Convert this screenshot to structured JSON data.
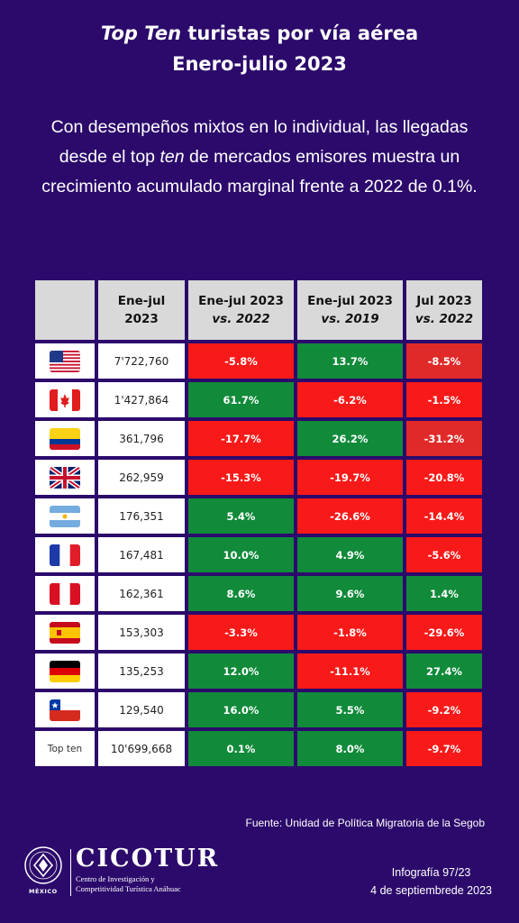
{
  "title": {
    "line1_italic": "Top Ten",
    "line1_rest": " turistas por vía aérea",
    "line2": "Enero-julio 2023"
  },
  "subtitle": {
    "part1": "Con desempeños mixtos en lo individual, las llegadas desde el top ",
    "italic": "ten",
    "part2": " de mercados emisores muestra un crecimiento acumulado marginal frente a 2022 de 0.1%."
  },
  "table": {
    "headers": [
      {
        "line1": "Ene-jul",
        "line2": "2023"
      },
      {
        "line1": "Ene-jul 2023",
        "line2": "vs. 2022"
      },
      {
        "line1": "Ene-jul 2023",
        "line2": "vs. 2019"
      },
      {
        "line1": "Jul 2023",
        "line2": "vs. 2022"
      }
    ],
    "rows": [
      {
        "flag": "usa-flag",
        "value": "7'722,760",
        "c1": "-5.8%",
        "c2": "13.7%",
        "c3": "-8.5%"
      },
      {
        "flag": "canada-flag",
        "value": "1'427,864",
        "c1": "61.7%",
        "c2": "-6.2%",
        "c3": "-1.5%"
      },
      {
        "flag": "colombia-flag",
        "value": "361,796",
        "c1": "-17.7%",
        "c2": "26.2%",
        "c3": "-31.2%"
      },
      {
        "flag": "uk-flag",
        "value": "262,959",
        "c1": "-15.3%",
        "c2": "-19.7%",
        "c3": "-20.8%"
      },
      {
        "flag": "argentina-flag",
        "value": "176,351",
        "c1": "5.4%",
        "c2": "-26.6%",
        "c3": "-14.4%"
      },
      {
        "flag": "france-flag",
        "value": "167,481",
        "c1": "10.0%",
        "c2": "4.9%",
        "c3": "-5.6%"
      },
      {
        "flag": "peru-flag",
        "value": "162,361",
        "c1": "8.6%",
        "c2": "9.6%",
        "c3": "1.4%"
      },
      {
        "flag": "spain-flag",
        "value": "153,303",
        "c1": "-3.3%",
        "c2": "-1.8%",
        "c3": "-29.6%"
      },
      {
        "flag": "germany-flag",
        "value": "135,253",
        "c1": "12.0%",
        "c2": "-11.1%",
        "c3": "27.4%"
      },
      {
        "flag": "chile-flag",
        "value": "129,540",
        "c1": "16.0%",
        "c2": "5.5%",
        "c3": "-9.2%"
      }
    ],
    "total": {
      "label": "Top ten",
      "value": "10'699,668",
      "c1": "0.1%",
      "c2": "8.0%",
      "c3": "-9.7%"
    }
  },
  "colors": {
    "background": "#2b0a6b",
    "positive": "#118a3a",
    "negative": "#f81919",
    "negative_dark": "#e02a2a"
  },
  "source": "Fuente: Unidad de Política Migratoria de la Segob",
  "logo": {
    "brand": "CICOTUR",
    "brand_sub_1": "Centro de Investigación y",
    "brand_sub_2": "Competitividad Turística Anáhuac",
    "seal_sub": "MÉXICO"
  },
  "credit": {
    "line1": "Infografía 97/23",
    "line2": "4 de septiembrede 2023"
  }
}
